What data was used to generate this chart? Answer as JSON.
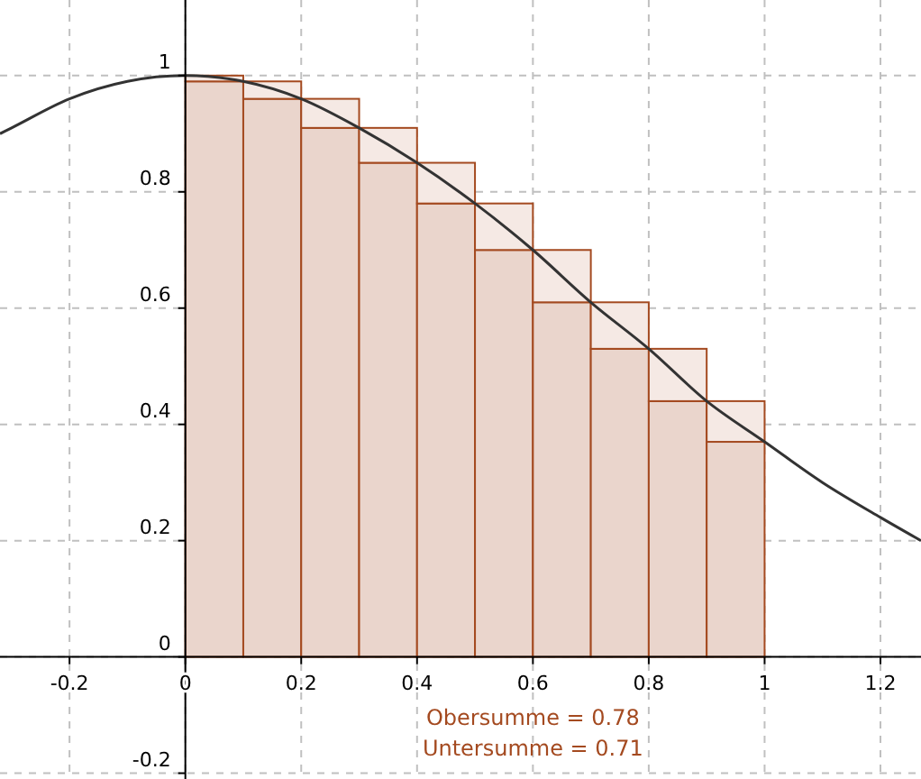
{
  "chart_data": {
    "type": "bar",
    "stacked": true,
    "x": [
      0.05,
      0.15,
      0.25,
      0.35,
      0.45,
      0.55,
      0.65,
      0.75,
      0.85,
      0.95
    ],
    "series": [
      {
        "color": "#ead5cc",
        "values": [
          0.99,
          0.96,
          0.91,
          0.85,
          0.78,
          0.7,
          0.61,
          0.53,
          0.44,
          0.37
        ]
      },
      {
        "color": "#f5e9e4",
        "values": [
          0.01,
          0.03,
          0.05,
          0.06,
          0.07,
          0.08,
          0.09,
          0.08,
          0.09,
          0.07
        ]
      },
      {
        "type": "line",
        "color": "#333333",
        "x": [
          -0.32,
          -0.3,
          -0.2,
          -0.1,
          0,
          0.1,
          0.2,
          0.3,
          0.4,
          0.5,
          0.6,
          0.7,
          0.8,
          0.9,
          1,
          1.1,
          1.2,
          1.27
        ],
        "values": [
          0.9,
          0.91,
          0.96,
          0.99,
          1,
          0.99,
          0.96,
          0.91,
          0.85,
          0.78,
          0.7,
          0.61,
          0.53,
          0.44,
          0.37,
          0.3,
          0.24,
          0.2
        ]
      }
    ],
    "xlim": [
      -0.32,
      1.27
    ],
    "ylim": [
      -0.21,
      1.13
    ],
    "xticks": [
      -0.2,
      0,
      0.2,
      0.4,
      0.6,
      0.8,
      1,
      1.2
    ],
    "yticks": [
      -0.2,
      0,
      0.2,
      0.4,
      0.6,
      0.8,
      1
    ],
    "grid": true,
    "line_style": "solid",
    "annotations": [
      "Obersumme = 0.78",
      "Untersumme = 0.71"
    ]
  }
}
